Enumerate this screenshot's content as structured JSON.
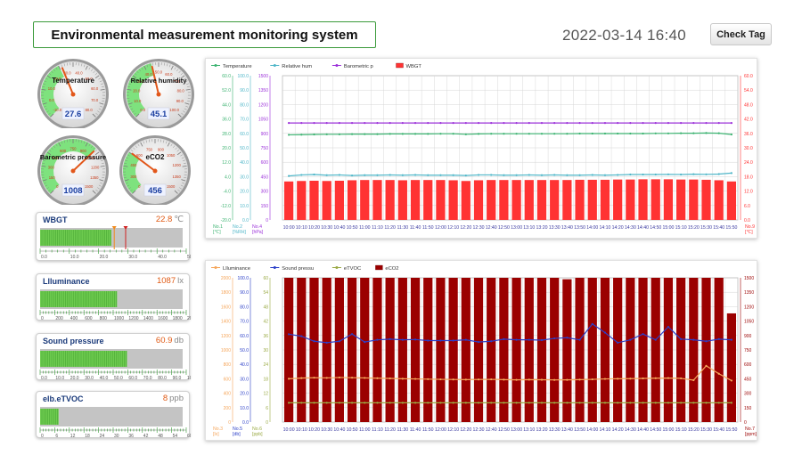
{
  "header": {
    "title": "Environmental measurement monitoring system",
    "datetime": "2022-03-14 16:40",
    "check_tag_label": "Check Tag"
  },
  "gauges": [
    {
      "id": "temperature",
      "label": "Temperature",
      "value": "27.6",
      "num": 27.6,
      "min": -10,
      "max": 80,
      "ticks": [
        "-10.0",
        "0.0",
        "10.0",
        "20.0",
        "30.0",
        "40.0",
        "50.0",
        "60.0",
        "70.0",
        "80.0"
      ],
      "green_from": 0,
      "green_to": 0.4
    },
    {
      "id": "humidity",
      "label": "Relative humidity",
      "value": "45.1",
      "num": 45.1,
      "min": 0,
      "max": 100,
      "ticks": [
        "0.0",
        "10.0",
        "20.0",
        "30.0",
        "40.0",
        "50.0",
        "60.0",
        "70.0",
        "80.0",
        "90.0",
        "100.0"
      ],
      "green_from": 0,
      "green_to": 0.45
    },
    {
      "id": "pressure",
      "label": "Barometric pressure",
      "value": "1008",
      "num": 1008,
      "min": 0,
      "max": 1500,
      "ticks": [
        "0",
        "150",
        "300",
        "450",
        "600",
        "750",
        "900",
        "1050",
        "1200",
        "1350",
        "1500"
      ],
      "green_from": 0,
      "green_to": 0.67
    },
    {
      "id": "eco2",
      "label": "eCO2",
      "value": "456",
      "num": 456,
      "min": 0,
      "max": 1500,
      "ticks": [
        "0",
        "300",
        "450",
        "600",
        "750",
        "900",
        "1050",
        "1200",
        "1350",
        "1500"
      ],
      "green_from": 0,
      "green_to": 0.3
    }
  ],
  "panels": [
    {
      "id": "wbgt",
      "label": "WBGT",
      "value": "22.8",
      "unit": "℃",
      "fraction": 0.5,
      "ticks": [
        "0.0",
        "10.0",
        "20.0",
        "30.0",
        "40.0",
        "50.0"
      ],
      "markers": true
    },
    {
      "id": "illuminance",
      "label": "Llluminance",
      "value": "1087",
      "unit": "lx",
      "fraction": 0.54,
      "ticks": [
        "0",
        "200",
        "400",
        "600",
        "800",
        "1000",
        "1200",
        "1400",
        "1600",
        "1800",
        "2000"
      ],
      "markers": false
    },
    {
      "id": "sound",
      "label": "Sound pressure",
      "value": "60.9",
      "unit": "db",
      "fraction": 0.61,
      "ticks": [
        "0.0",
        "10.0",
        "20.0",
        "30.0",
        "40.0",
        "50.0",
        "60.0",
        "70.0",
        "80.0",
        "90.0",
        "100"
      ],
      "markers": false
    },
    {
      "id": "etvoc",
      "label": "elb.eTVOC",
      "value": "8",
      "unit": "ppb",
      "fraction": 0.13,
      "ticks": [
        "0",
        "6",
        "12",
        "18",
        "24",
        "30",
        "36",
        "42",
        "48",
        "54",
        "60"
      ],
      "markers": false
    }
  ],
  "chart_data": [
    {
      "type": "line",
      "legend": [
        "Temperature",
        "Relative hum",
        "Barometric p",
        "WBGT"
      ],
      "colors": [
        "#3cb371",
        "#4fb6c8",
        "#9b30d9",
        "#ff3333"
      ],
      "axis_labels": {
        "left1": [
          "No.1",
          "[℃]"
        ],
        "left2": [
          "No.2",
          "[%RH]"
        ],
        "left3": [
          "No.4",
          "[hPa]"
        ],
        "right": [
          "No.9",
          "[℃]"
        ]
      },
      "axes": {
        "left1": [
          "60.0",
          "52.0",
          "44.0",
          "36.0",
          "28.0",
          "20.0",
          "12.0",
          "4.0",
          "-4.0",
          "-12.0",
          "-20.0"
        ],
        "left2": [
          "100.0",
          "90.0",
          "80.0",
          "70.0",
          "60.0",
          "50.0",
          "40.0",
          "30.0",
          "20.0",
          "10.0",
          "0.0"
        ],
        "left3": [
          "1500",
          "1350",
          "1200",
          "1050",
          "900",
          "750",
          "600",
          "450",
          "300",
          "150",
          "0"
        ],
        "right": [
          "60.0",
          "54.0",
          "48.0",
          "42.0",
          "36.0",
          "30.0",
          "24.0",
          "18.0",
          "12.0",
          "6.0",
          "0.0"
        ]
      },
      "x": [
        "10:00",
        "10:10",
        "10:20",
        "10:30",
        "10:40",
        "10:50",
        "11:00",
        "11:10",
        "11:20",
        "11:30",
        "11:40",
        "11:50",
        "12:00",
        "12:10",
        "12:20",
        "12:30",
        "12:40",
        "12:50",
        "13:00",
        "13:10",
        "13:20",
        "13:30",
        "13:40",
        "13:50",
        "14:00",
        "14:10",
        "14:20",
        "14:30",
        "14:40",
        "14:50",
        "15:00",
        "15:10",
        "15:20",
        "15:30",
        "15:40",
        "15:50"
      ],
      "series": [
        {
          "name": "Temperature",
          "axis": "left1",
          "min": -20,
          "max": 60,
          "values": [
            27.2,
            27.3,
            27.4,
            27.5,
            27.5,
            27.6,
            27.6,
            27.6,
            27.7,
            27.7,
            27.7,
            27.7,
            27.8,
            27.8,
            27.5,
            27.7,
            27.8,
            27.8,
            27.8,
            27.8,
            27.8,
            27.8,
            27.8,
            27.9,
            27.9,
            27.9,
            27.9,
            27.9,
            27.9,
            28.0,
            28.0,
            28.1,
            28.1,
            28.2,
            28.1,
            27.4
          ]
        },
        {
          "name": "Relative hum",
          "axis": "left2",
          "min": 0,
          "max": 100,
          "values": [
            30.5,
            31.2,
            31.5,
            31.0,
            31.2,
            30.8,
            31.0,
            31.0,
            31.2,
            31.0,
            31.2,
            31.0,
            31.0,
            31.0,
            30.8,
            31.2,
            31.2,
            31.0,
            31.0,
            31.2,
            31.0,
            31.2,
            31.0,
            31.0,
            31.2,
            31.0,
            31.2,
            31.5,
            31.5,
            31.5,
            31.6,
            31.5,
            31.7,
            31.6,
            31.8,
            32.5
          ]
        },
        {
          "name": "Barometric p",
          "axis": "left3",
          "min": 0,
          "max": 1500,
          "values": [
            1008,
            1008,
            1008,
            1008,
            1008,
            1008,
            1008,
            1008,
            1008,
            1008,
            1008,
            1008,
            1008,
            1008,
            1008,
            1008,
            1008,
            1008,
            1008,
            1008,
            1008,
            1008,
            1008,
            1008,
            1008,
            1008,
            1008,
            1008,
            1008,
            1008,
            1008,
            1008,
            1008,
            1008,
            1008,
            1008
          ]
        },
        {
          "name": "WBGT",
          "type": "bar",
          "axis": "right",
          "min": 0,
          "max": 60,
          "values": [
            16.0,
            16.2,
            16.3,
            16.2,
            16.3,
            16.5,
            16.6,
            16.6,
            16.6,
            16.5,
            16.6,
            16.6,
            16.6,
            16.5,
            16.2,
            16.5,
            16.6,
            16.6,
            16.6,
            16.6,
            16.6,
            16.6,
            16.6,
            16.7,
            16.7,
            16.7,
            16.8,
            16.8,
            16.9,
            16.9,
            16.9,
            16.8,
            16.8,
            16.7,
            16.5,
            16.0
          ]
        }
      ]
    },
    {
      "type": "line",
      "legend": [
        "Llluminance",
        "Sound pressu",
        "eTVOC",
        "eCO2"
      ],
      "colors": [
        "#f5a65b",
        "#2b3fc8",
        "#9aaa44",
        "#9b0000"
      ],
      "axis_labels": {
        "left1": [
          "No.3",
          "[lx]"
        ],
        "left2": [
          "No.5",
          "[db]"
        ],
        "left3": [
          "No.6",
          "[ppb]"
        ],
        "right": [
          "No.7",
          "[ppm]"
        ]
      },
      "axes": {
        "left1": [
          "2000",
          "1800",
          "1600",
          "1400",
          "1200",
          "1000",
          "800",
          "600",
          "400",
          "200",
          "0"
        ],
        "left2": [
          "100.0",
          "90.0",
          "80.0",
          "70.0",
          "60.0",
          "50.0",
          "40.0",
          "30.0",
          "20.0",
          "10.0",
          "0.0"
        ],
        "left3": [
          "60",
          "54",
          "48",
          "42",
          "36",
          "30",
          "24",
          "18",
          "12",
          "6",
          "0"
        ],
        "right": [
          "1500",
          "1350",
          "1200",
          "1050",
          "900",
          "750",
          "600",
          "450",
          "300",
          "150",
          "0"
        ]
      },
      "x": [
        "10:00",
        "10:10",
        "10:20",
        "10:30",
        "10:40",
        "10:50",
        "11:00",
        "11:10",
        "11:20",
        "11:30",
        "11:40",
        "11:50",
        "12:00",
        "12:10",
        "12:20",
        "12:30",
        "12:40",
        "12:50",
        "13:00",
        "13:10",
        "13:20",
        "13:30",
        "13:40",
        "13:50",
        "14:00",
        "14:10",
        "14:20",
        "14:30",
        "14:40",
        "14:50",
        "15:00",
        "15:10",
        "15:20",
        "15:30",
        "15:40",
        "15:50"
      ],
      "series": [
        {
          "name": "Llluminance",
          "axis": "left1",
          "min": 0,
          "max": 2000,
          "values": [
            600,
            610,
            615,
            612,
            618,
            615,
            612,
            608,
            605,
            600,
            598,
            595,
            592,
            590,
            588,
            590,
            592,
            588,
            585,
            588,
            586,
            584,
            585,
            588,
            592,
            598,
            600,
            602,
            605,
            608,
            610,
            606,
            580,
            780,
            670,
            575
          ]
        },
        {
          "name": "Sound pressu",
          "axis": "left2",
          "min": 0,
          "max": 100,
          "values": [
            60.9,
            59.5,
            56,
            55,
            56,
            61,
            55.5,
            57,
            57.5,
            57,
            57.2,
            56.5,
            56.5,
            56.5,
            57,
            55.5,
            56,
            57.5,
            57,
            57,
            56.8,
            58,
            58.5,
            57,
            68,
            62,
            55,
            57,
            61,
            57,
            66,
            57.5,
            57,
            56,
            57.5,
            57
          ]
        },
        {
          "name": "eTVOC",
          "axis": "left3",
          "min": 0,
          "max": 60,
          "values": [
            8,
            8,
            8,
            8,
            8,
            8,
            8,
            8,
            8,
            8,
            8,
            8,
            8,
            8,
            8,
            8,
            8,
            8,
            8,
            8,
            8,
            8,
            8,
            8,
            8,
            8,
            8,
            8,
            8,
            8,
            8,
            8,
            8,
            8,
            8,
            8
          ]
        },
        {
          "name": "eCO2",
          "type": "bar",
          "axis": "right",
          "min": 0,
          "max": 1500,
          "values": [
            1500,
            1500,
            1500,
            1500,
            1500,
            1500,
            1500,
            1500,
            1500,
            1500,
            1500,
            1500,
            1500,
            1500,
            1500,
            1500,
            1500,
            1500,
            1500,
            1500,
            1500,
            1500,
            1485,
            1500,
            1500,
            1500,
            1500,
            1500,
            1500,
            1500,
            1500,
            1500,
            1500,
            1500,
            1500,
            1130
          ]
        }
      ]
    }
  ]
}
